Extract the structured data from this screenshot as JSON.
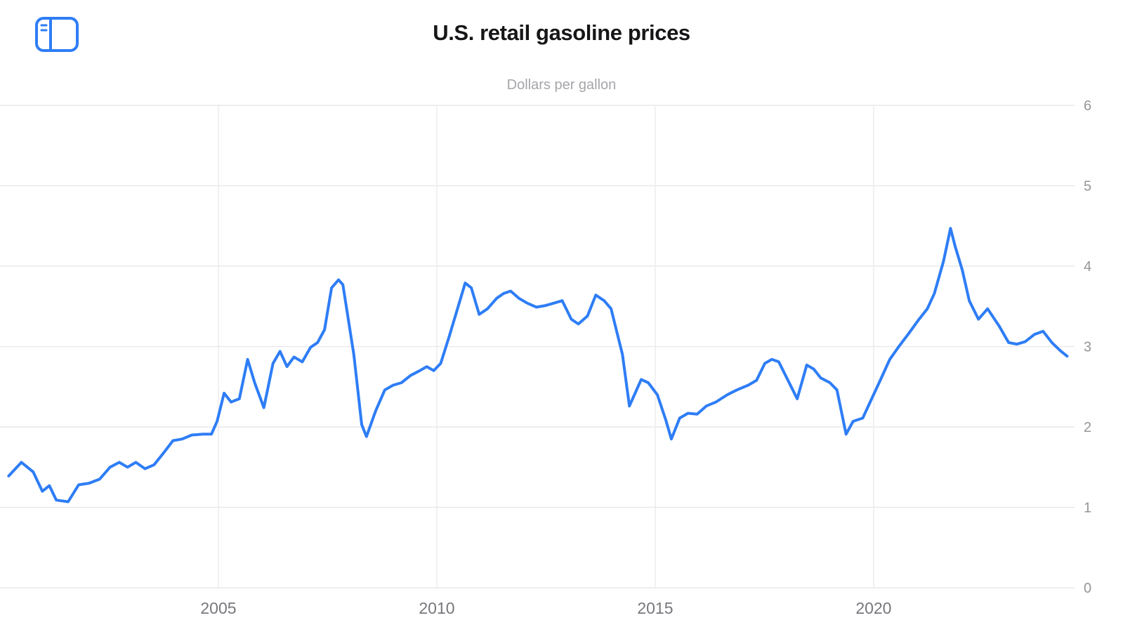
{
  "header": {
    "title": "U.S. retail gasoline prices",
    "subtitle": "Dollars per gallon"
  },
  "toolbar": {
    "sidebar_icon": "sidebar-toggle"
  },
  "colors": {
    "background": "#ffffff",
    "line": "#2e7df6",
    "grid_horizontal": "#e9e9eb",
    "grid_vertical": "#ececee",
    "y_axis_label": "#95959a",
    "x_axis_label": "#77777c",
    "title": "#161618",
    "subtitle": "#a5a5aa",
    "icon": "#2e7df6"
  },
  "chart_data": {
    "type": "line",
    "title": "U.S. retail gasoline prices",
    "subtitle": "Dollars per gallon",
    "xlabel": "",
    "ylabel": "Dollars per gallon",
    "legend": "none",
    "grid": true,
    "y_axis_side": "right",
    "xlim": [
      2000,
      2024.6
    ],
    "ylim": [
      0,
      6
    ],
    "x_ticks": [
      2005,
      2010,
      2015,
      2020
    ],
    "x_tick_labels": [
      "2005",
      "2010",
      "2015",
      "2020"
    ],
    "y_ticks": [
      0,
      1,
      2,
      3,
      4,
      5,
      6
    ],
    "y_tick_labels": [
      "0",
      "1",
      "2",
      "3",
      "4",
      "5",
      "6"
    ],
    "series": [
      {
        "name": "U.S. retail gasoline price",
        "color": "#2e7df6",
        "x": [
          2000.2,
          2000.49,
          2000.76,
          2000.97,
          2001.13,
          2001.29,
          2001.56,
          2001.8,
          2002.04,
          2002.28,
          2002.52,
          2002.73,
          2002.92,
          2003.11,
          2003.32,
          2003.53,
          2003.75,
          2003.96,
          2004.17,
          2004.39,
          2004.65,
          2004.84,
          2004.97,
          2005.13,
          2005.29,
          2005.48,
          2005.67,
          2005.83,
          2006.04,
          2006.25,
          2006.41,
          2006.57,
          2006.73,
          2006.92,
          2007.11,
          2007.27,
          2007.43,
          2007.59,
          2007.75,
          2007.85,
          2008.1,
          2008.28,
          2008.39,
          2008.6,
          2008.81,
          2009.0,
          2009.19,
          2009.4,
          2009.61,
          2009.77,
          2009.93,
          2010.09,
          2010.28,
          2010.65,
          2010.79,
          2010.97,
          2011.16,
          2011.37,
          2011.53,
          2011.69,
          2011.88,
          2012.07,
          2012.28,
          2012.49,
          2012.68,
          2012.87,
          2013.08,
          2013.24,
          2013.45,
          2013.64,
          2013.83,
          2013.99,
          2014.25,
          2014.41,
          2014.68,
          2014.84,
          2015.05,
          2015.24,
          2015.37,
          2015.56,
          2015.75,
          2015.96,
          2016.17,
          2016.39,
          2016.65,
          2016.87,
          2017.13,
          2017.32,
          2017.51,
          2017.67,
          2017.83,
          2018.04,
          2018.25,
          2018.47,
          2018.63,
          2018.79,
          2019.0,
          2019.16,
          2019.37,
          2019.53,
          2019.75,
          2020.16,
          2020.37,
          2020.59,
          2020.8,
          2021.04,
          2021.23,
          2021.39,
          2021.6,
          2021.76,
          2021.87,
          2022.03,
          2022.19,
          2022.4,
          2022.61,
          2022.88,
          2023.09,
          2023.28,
          2023.47,
          2023.68,
          2023.88,
          2024.08,
          2024.27,
          2024.43
        ],
        "y": [
          1.39,
          1.56,
          1.44,
          1.2,
          1.27,
          1.09,
          1.07,
          1.28,
          1.3,
          1.35,
          1.5,
          1.56,
          1.5,
          1.56,
          1.48,
          1.53,
          1.68,
          1.83,
          1.85,
          1.9,
          1.91,
          1.91,
          2.07,
          2.42,
          2.31,
          2.35,
          2.84,
          2.55,
          2.24,
          2.79,
          2.94,
          2.75,
          2.87,
          2.81,
          2.99,
          3.05,
          3.21,
          3.73,
          3.83,
          3.77,
          2.9,
          2.03,
          1.88,
          2.2,
          2.46,
          2.52,
          2.55,
          2.64,
          2.7,
          2.75,
          2.7,
          2.79,
          3.12,
          3.79,
          3.73,
          3.4,
          3.47,
          3.6,
          3.66,
          3.69,
          3.6,
          3.54,
          3.49,
          3.51,
          3.54,
          3.57,
          3.34,
          3.28,
          3.38,
          3.64,
          3.57,
          3.47,
          2.9,
          2.26,
          2.59,
          2.55,
          2.4,
          2.09,
          1.85,
          2.11,
          2.17,
          2.16,
          2.26,
          2.31,
          2.4,
          2.46,
          2.52,
          2.58,
          2.79,
          2.84,
          2.81,
          2.58,
          2.35,
          2.77,
          2.72,
          2.61,
          2.55,
          2.46,
          1.91,
          2.07,
          2.11,
          2.59,
          2.84,
          3.01,
          3.16,
          3.34,
          3.47,
          3.66,
          4.06,
          4.47,
          4.24,
          3.95,
          3.57,
          3.34,
          3.47,
          3.25,
          3.05,
          3.03,
          3.06,
          3.15,
          3.19,
          3.05,
          2.95,
          2.88
        ]
      }
    ]
  }
}
